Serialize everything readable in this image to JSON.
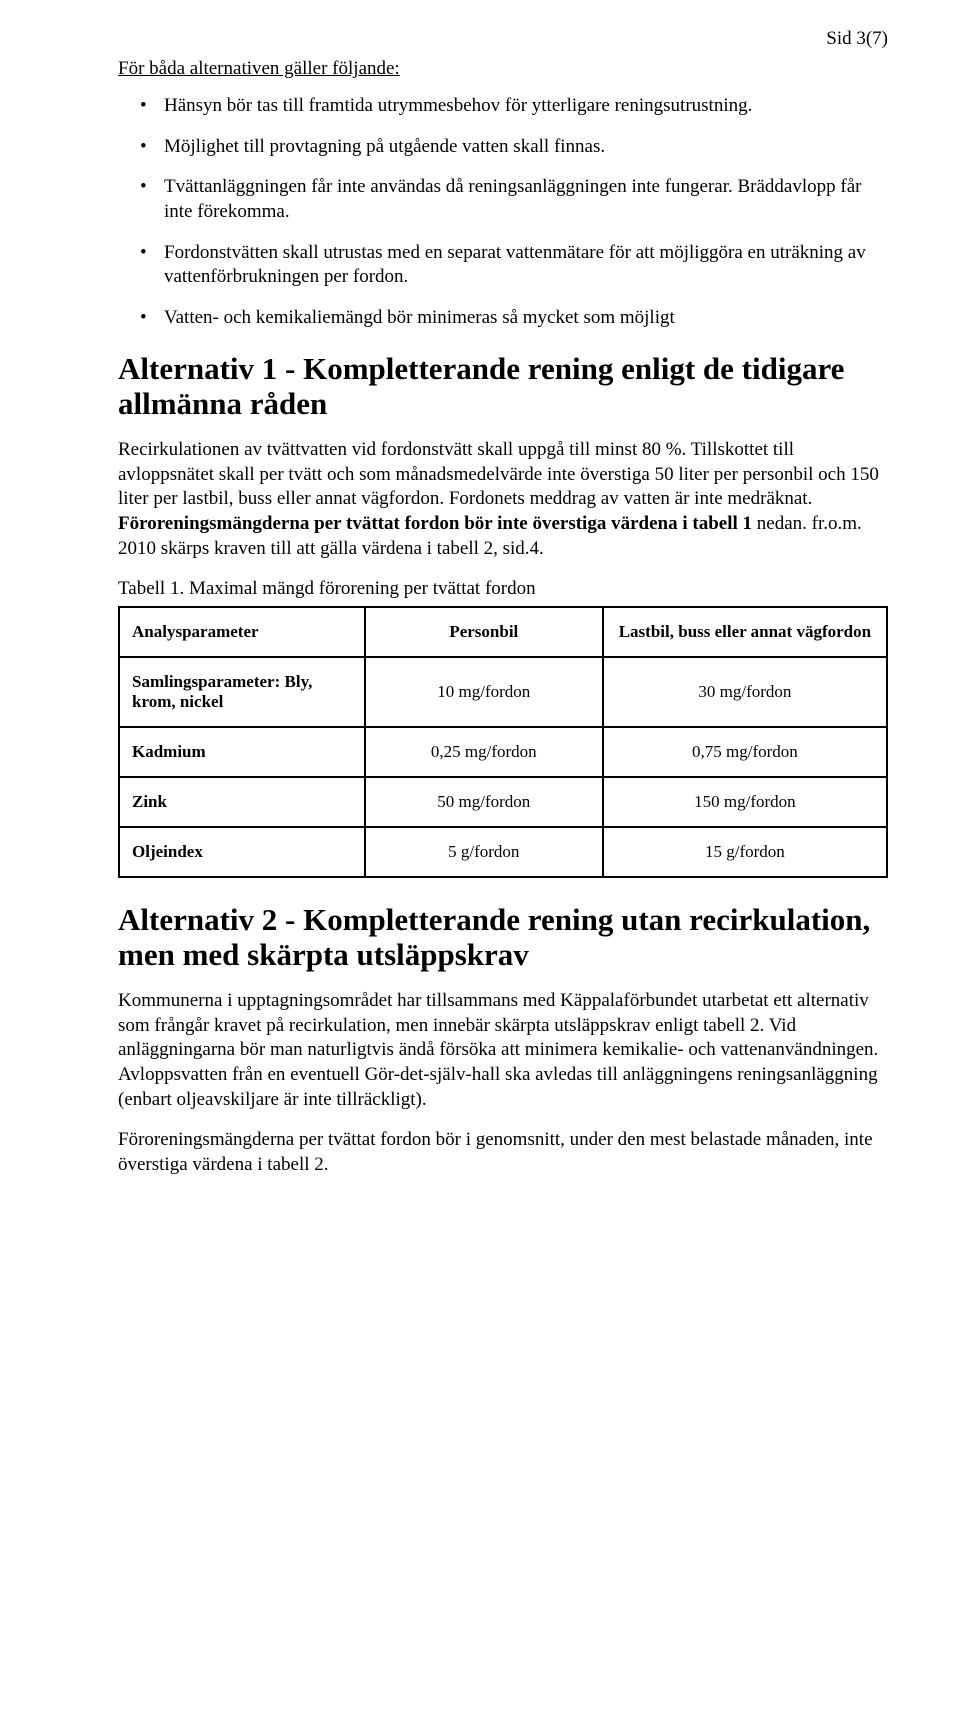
{
  "pageNumber": "Sid 3(7)",
  "introHeading": "För båda alternativen gäller följande:",
  "bullets": [
    "Hänsyn bör tas till framtida utrymmesbehov för ytterligare reningsutrustning.",
    "Möjlighet till provtagning på utgående vatten skall finnas.",
    "Tvättanläggningen får inte användas då reningsanläggningen inte fungerar. Bräddavlopp får inte förekomma.",
    "Fordonstvätten skall utrustas med en separat vattenmätare för att möjliggöra en uträkning av vattenförbrukningen per fordon.",
    "Vatten- och kemikaliemängd bör minimeras så mycket som möjligt"
  ],
  "alt1": {
    "heading": "Alternativ 1 - Kompletterande rening enligt de tidigare allmänna råden",
    "p1a": "Recirkulationen av tvättvatten vid fordonstvätt skall uppgå till minst 80 %. Tillskottet till avloppsnätet skall per tvätt och som månadsmedelvärde inte överstiga 50 liter per personbil och 150 liter per lastbil, buss eller annat vägfordon. Fordonets meddrag av vatten är inte medräknat. ",
    "p1bold": "Föroreningsmängderna per tvättat fordon bör inte överstiga värdena i tabell 1",
    "p1b": " nedan. fr.o.m. 2010 skärps kraven till att gälla värdena i tabell 2, sid.4.",
    "tableCaption": "Tabell 1. Maximal mängd förorening per tvättat fordon",
    "table": {
      "columns": [
        "Analysparameter",
        "Personbil",
        "Lastbil, buss eller annat vägfordon"
      ],
      "rows": [
        [
          "Samlingsparameter: Bly, krom, nickel",
          "10 mg/fordon",
          "30 mg/fordon"
        ],
        [
          "Kadmium",
          "0,25 mg/fordon",
          "0,75 mg/fordon"
        ],
        [
          "Zink",
          "50 mg/fordon",
          "150 mg/fordon"
        ],
        [
          "Oljeindex",
          "5 g/fordon",
          "15 g/fordon"
        ]
      ]
    }
  },
  "alt2": {
    "heading": "Alternativ 2 - Kompletterande rening utan recirkulation, men med skärpta utsläppskrav",
    "p1": "Kommunerna i upptagningsområdet har tillsammans med Käppalaförbundet utarbetat ett alternativ som frångår kravet på recirkulation, men innebär skärpta utsläppskrav enligt tabell 2. Vid anläggningarna bör man naturligtvis ändå försöka att minimera kemikalie- och vattenanvändningen. Avloppsvatten från en eventuell Gör-det-själv-hall ska avledas till anläggningens reningsanläggning (enbart oljeavskiljare är inte tillräckligt).",
    "p2": "Föroreningsmängderna per tvättat fordon bör i genomsnitt, under den mest belastade månaden, inte överstiga värdena i tabell 2."
  },
  "style": {
    "fontFamily": "Times New Roman",
    "bodyFontSizePt": 14,
    "headingFontSizePt": 24,
    "textColor": "#000000",
    "background": "#ffffff",
    "tableBorderColor": "#000000",
    "tableBorderWidthPx": 2,
    "tableCellFontSizePt": 13
  }
}
